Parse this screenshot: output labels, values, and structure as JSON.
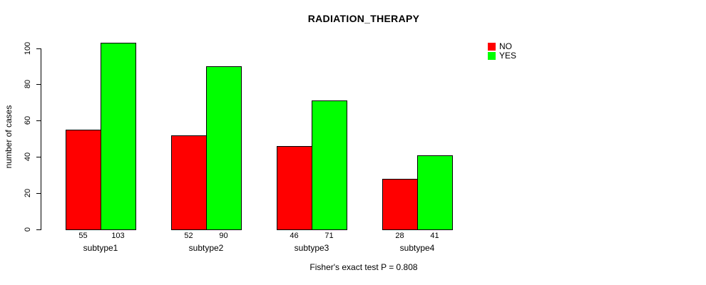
{
  "title": "RADIATION_THERAPY",
  "footer": "Fisher's exact test P = 0.808",
  "legend": {
    "position": "right",
    "items": [
      {
        "label": "NO",
        "color": "#ff0000"
      },
      {
        "label": "YES",
        "color": "#00ff00"
      }
    ]
  },
  "chart_data": {
    "type": "bar",
    "title": "RADIATION_THERAPY",
    "xlabel": "",
    "ylabel": "number of cases",
    "categories": [
      "subtype1",
      "subtype2",
      "subtype3",
      "subtype4"
    ],
    "series": [
      {
        "name": "NO",
        "color": "#ff0000",
        "values": [
          55,
          52,
          46,
          28
        ]
      },
      {
        "name": "YES",
        "color": "#00ff00",
        "values": [
          103,
          90,
          71,
          41
        ]
      }
    ],
    "bar_value_labels": {
      "NO": [
        55,
        52,
        46,
        28
      ],
      "YES": [
        103,
        90,
        71,
        41
      ]
    },
    "ylim": [
      0,
      100
    ],
    "yticks": [
      0,
      20,
      40,
      60,
      80,
      100
    ],
    "grid": false,
    "legend_position": "top-right",
    "annotation": "Fisher's exact test P = 0.808"
  }
}
